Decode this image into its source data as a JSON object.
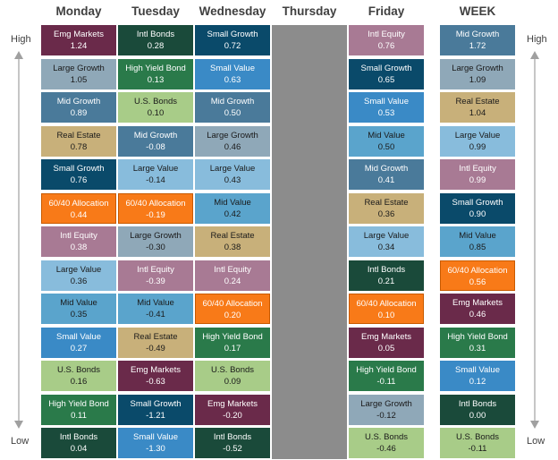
{
  "labels": {
    "high": "High",
    "low": "Low"
  },
  "columns": [
    "Monday",
    "Tuesday",
    "Wednesday",
    "Thursday",
    "Friday",
    "WEEK"
  ],
  "colors": {
    "Emg Markets": "#6a2a4a",
    "Intl Bonds": "#1a4a3a",
    "Small Growth": "#0a4a6a",
    "Large Growth": "#8fa8b8",
    "High Yield Bond": "#2a7a4a",
    "Small Value": "#3a8ac6",
    "Mid Growth": "#4a7a9a",
    "U.S. Bonds": "#a8cc88",
    "Real Estate": "#c8b07a",
    "Large Value": "#88bcdc",
    "Intl Equity": "#a87a94",
    "Mid Value": "#5aa4cc",
    "60/40 Allocation": "#f87a18"
  },
  "chart_data": {
    "type": "table",
    "xlabel": "",
    "ylabel": "",
    "days": [
      {
        "name": "Monday",
        "cells": [
          {
            "name": "Emg Markets",
            "value": "1.24"
          },
          {
            "name": "Large Growth",
            "value": "1.05"
          },
          {
            "name": "Mid Growth",
            "value": "0.89"
          },
          {
            "name": "Real Estate",
            "value": "0.78"
          },
          {
            "name": "Small Growth",
            "value": "0.76"
          },
          {
            "name": "60/40 Allocation",
            "value": "0.44"
          },
          {
            "name": "Intl Equity",
            "value": "0.38"
          },
          {
            "name": "Large Value",
            "value": "0.36"
          },
          {
            "name": "Mid Value",
            "value": "0.35"
          },
          {
            "name": "Small Value",
            "value": "0.27"
          },
          {
            "name": "U.S. Bonds",
            "value": "0.16"
          },
          {
            "name": "High Yield Bond",
            "value": "0.11"
          },
          {
            "name": "Intl Bonds",
            "value": "0.04"
          }
        ]
      },
      {
        "name": "Tuesday",
        "cells": [
          {
            "name": "Intl Bonds",
            "value": "0.28"
          },
          {
            "name": "High Yield Bond",
            "value": "0.13"
          },
          {
            "name": "U.S. Bonds",
            "value": "0.10"
          },
          {
            "name": "Mid Growth",
            "value": "-0.08"
          },
          {
            "name": "Large Value",
            "value": "-0.14"
          },
          {
            "name": "60/40 Allocation",
            "value": "-0.19"
          },
          {
            "name": "Large Growth",
            "value": "-0.30"
          },
          {
            "name": "Intl Equity",
            "value": "-0.39"
          },
          {
            "name": "Mid Value",
            "value": "-0.41"
          },
          {
            "name": "Real Estate",
            "value": "-0.49"
          },
          {
            "name": "Emg Markets",
            "value": "-0.63"
          },
          {
            "name": "Small Growth",
            "value": "-1.21"
          },
          {
            "name": "Small Value",
            "value": "-1.30"
          }
        ]
      },
      {
        "name": "Wednesday",
        "cells": [
          {
            "name": "Small Growth",
            "value": "0.72"
          },
          {
            "name": "Small Value",
            "value": "0.63"
          },
          {
            "name": "Mid Growth",
            "value": "0.50"
          },
          {
            "name": "Large Growth",
            "value": "0.46"
          },
          {
            "name": "Large Value",
            "value": "0.43"
          },
          {
            "name": "Mid Value",
            "value": "0.42"
          },
          {
            "name": "Real Estate",
            "value": "0.38"
          },
          {
            "name": "Intl Equity",
            "value": "0.24"
          },
          {
            "name": "60/40 Allocation",
            "value": "0.20"
          },
          {
            "name": "High Yield Bond",
            "value": "0.17"
          },
          {
            "name": "U.S. Bonds",
            "value": "0.09"
          },
          {
            "name": "Emg Markets",
            "value": "-0.20"
          },
          {
            "name": "Intl Bonds",
            "value": "-0.52"
          }
        ]
      },
      {
        "name": "Thursday",
        "cells": []
      },
      {
        "name": "Friday",
        "cells": [
          {
            "name": "Intl Equity",
            "value": "0.76"
          },
          {
            "name": "Small Growth",
            "value": "0.65"
          },
          {
            "name": "Small Value",
            "value": "0.53"
          },
          {
            "name": "Mid Value",
            "value": "0.50"
          },
          {
            "name": "Mid Growth",
            "value": "0.41"
          },
          {
            "name": "Real Estate",
            "value": "0.36"
          },
          {
            "name": "Large Value",
            "value": "0.34"
          },
          {
            "name": "Intl Bonds",
            "value": "0.21"
          },
          {
            "name": "60/40 Allocation",
            "value": "0.10"
          },
          {
            "name": "Emg Markets",
            "value": "0.05"
          },
          {
            "name": "High Yield Bond",
            "value": "-0.11"
          },
          {
            "name": "Large Growth",
            "value": "-0.12"
          },
          {
            "name": "U.S. Bonds",
            "value": "-0.46"
          }
        ]
      },
      {
        "name": "WEEK",
        "cells": [
          {
            "name": "Mid Growth",
            "value": "1.72"
          },
          {
            "name": "Large Growth",
            "value": "1.09"
          },
          {
            "name": "Real Estate",
            "value": "1.04"
          },
          {
            "name": "Large Value",
            "value": "0.99"
          },
          {
            "name": "Intl Equity",
            "value": "0.99"
          },
          {
            "name": "Small Growth",
            "value": "0.90"
          },
          {
            "name": "Mid Value",
            "value": "0.85"
          },
          {
            "name": "60/40 Allocation",
            "value": "0.56"
          },
          {
            "name": "Emg Markets",
            "value": "0.46"
          },
          {
            "name": "High Yield Bond",
            "value": "0.31"
          },
          {
            "name": "Small Value",
            "value": "0.12"
          },
          {
            "name": "Intl Bonds",
            "value": "0.00"
          },
          {
            "name": "U.S. Bonds",
            "value": "-0.11"
          }
        ]
      }
    ]
  }
}
